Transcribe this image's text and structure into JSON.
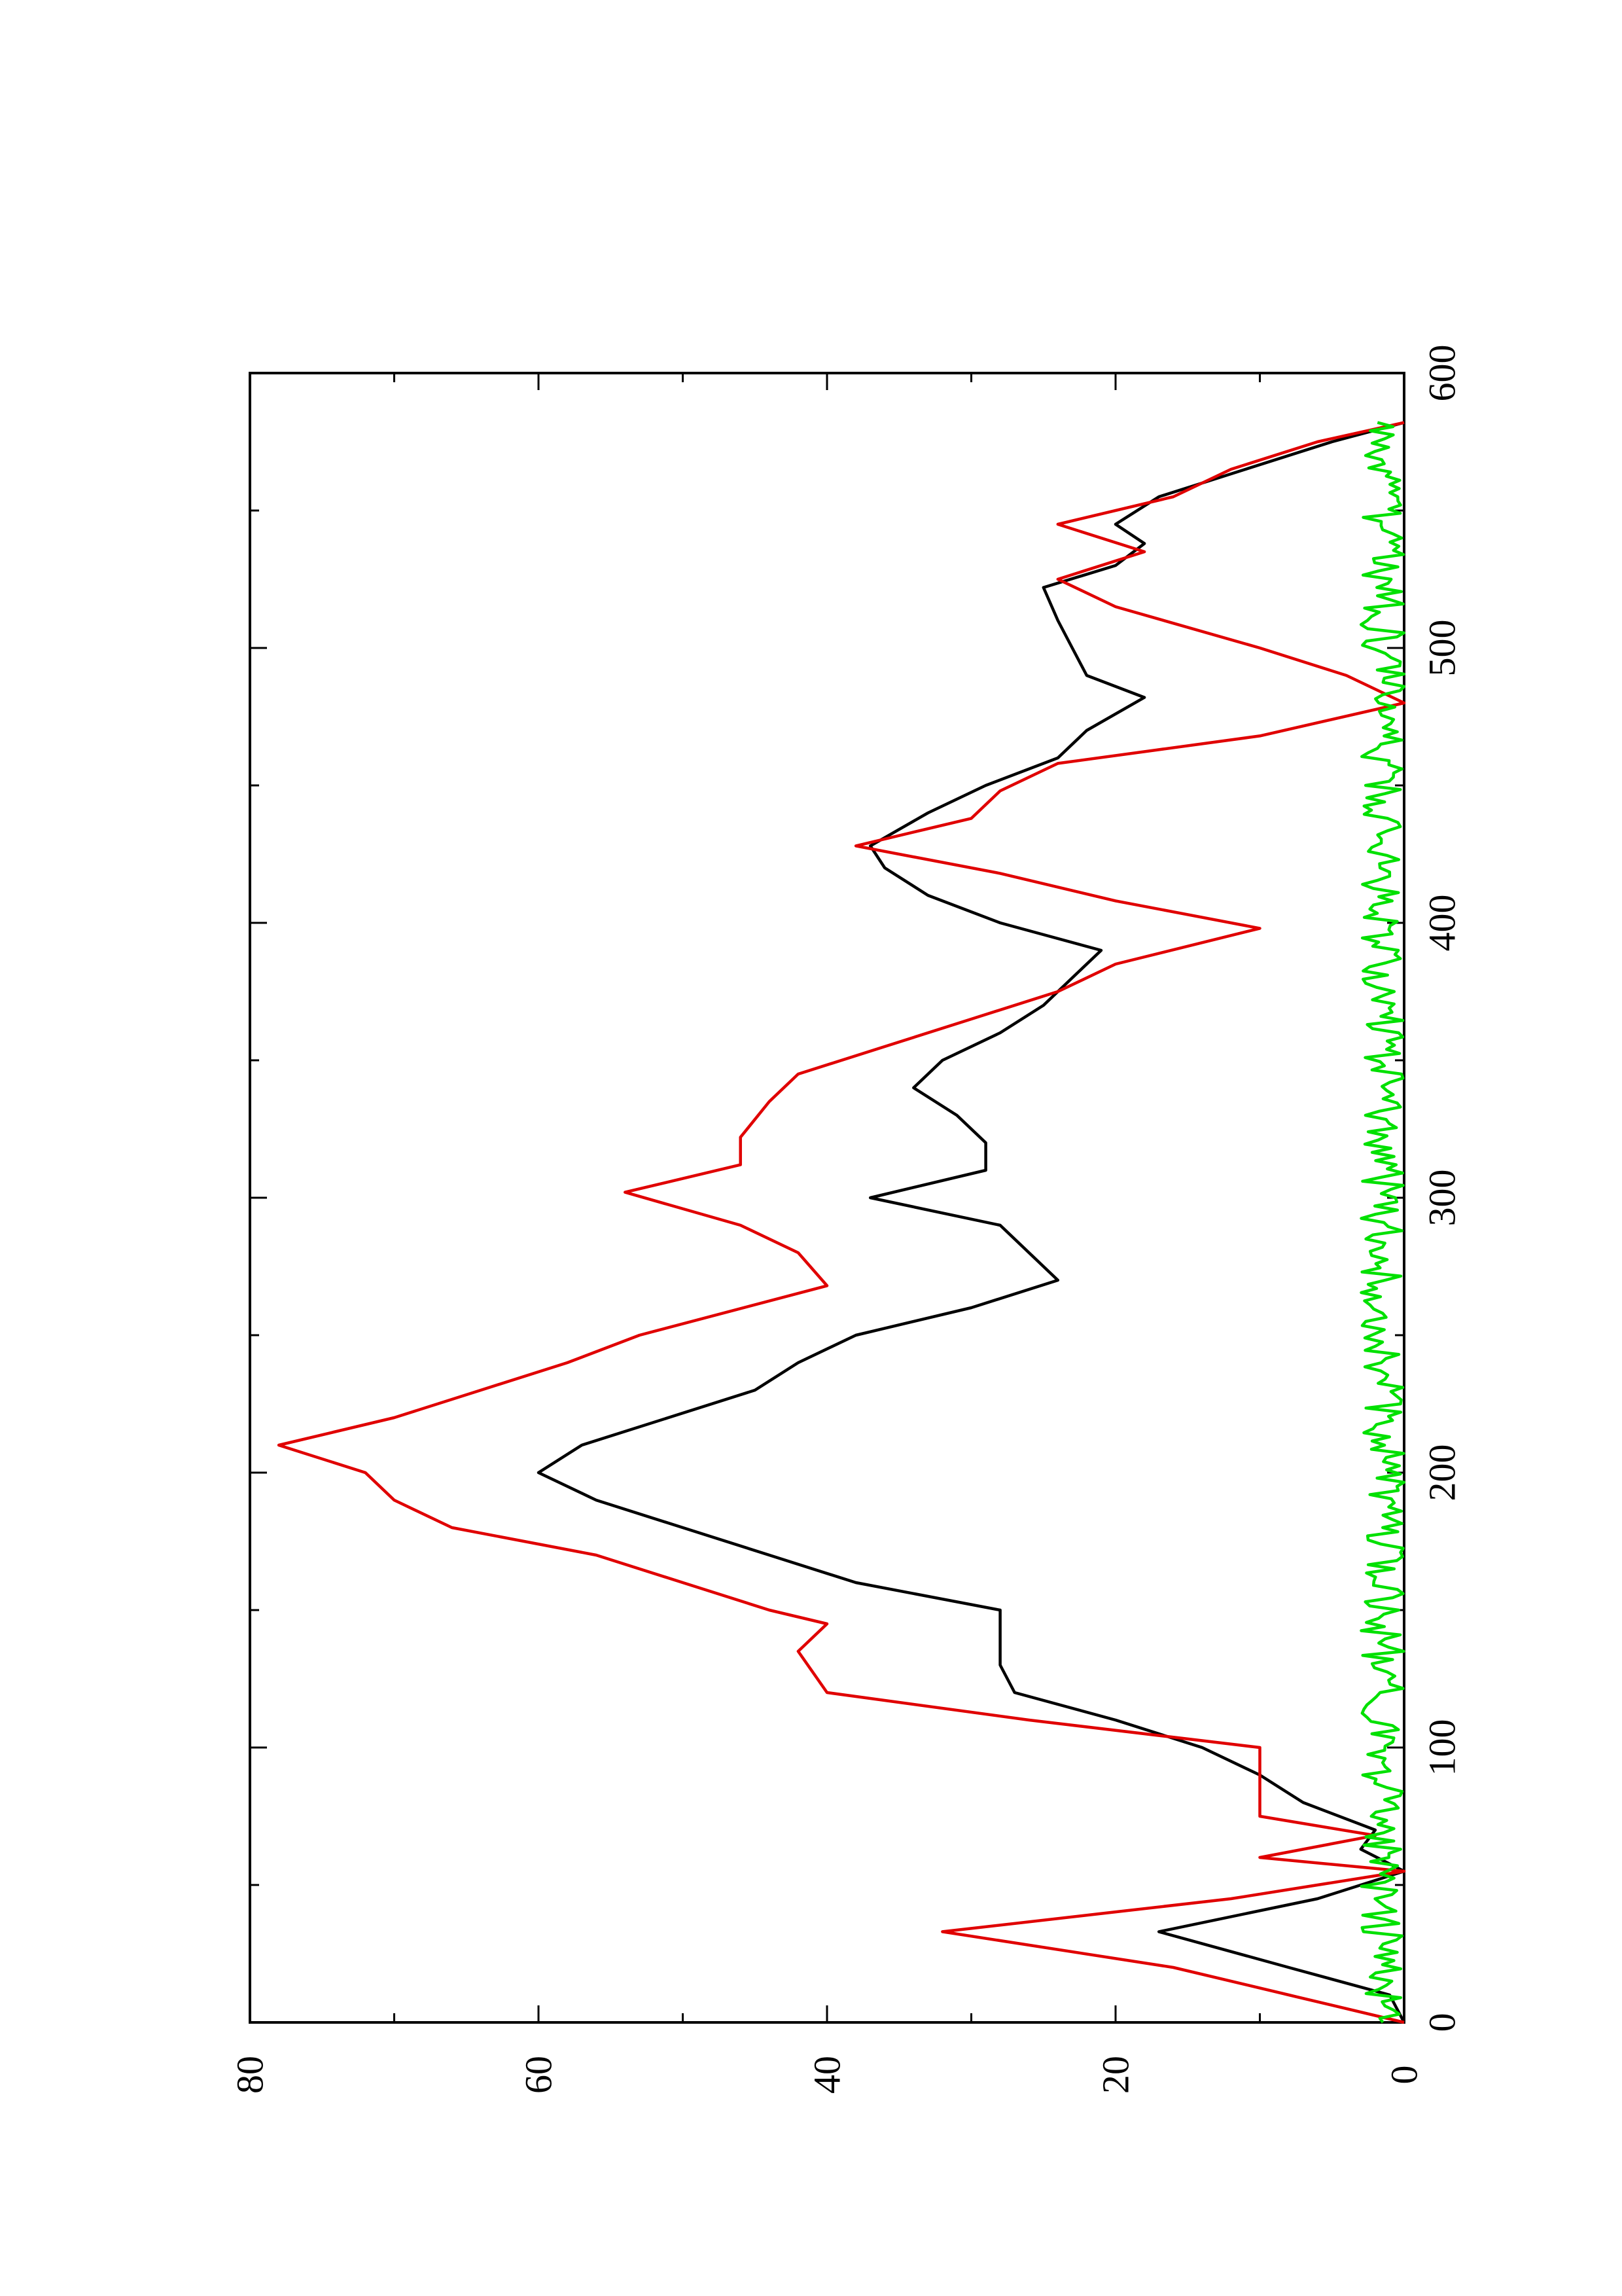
{
  "chart_data": {
    "type": "line",
    "orientation": "rotated-90-ccw",
    "title": "",
    "xlabel": "",
    "ylabel": "",
    "xlim": [
      0,
      600
    ],
    "ylim": [
      0,
      80
    ],
    "x_ticks": [
      0,
      100,
      200,
      300,
      400,
      500,
      600
    ],
    "x_tick_labels": [
      "0",
      "100",
      "200",
      "300",
      "400",
      "500",
      "600"
    ],
    "x_minor_ticks": [
      50,
      150,
      250,
      350,
      450,
      550
    ],
    "y_ticks": [
      0,
      20,
      40,
      60,
      80
    ],
    "y_tick_labels": [
      "0",
      "20",
      "40",
      "60",
      "80"
    ],
    "y_minor_ticks": [
      10,
      30,
      50,
      70
    ],
    "grid": false,
    "legend": "none",
    "series": [
      {
        "color": "#000000",
        "x": [
          0,
          10,
          20,
          33,
          45,
          55,
          63,
          70,
          80,
          90,
          100,
          110,
          120,
          130,
          140,
          150,
          160,
          170,
          180,
          190,
          200,
          210,
          220,
          230,
          240,
          250,
          260,
          270,
          280,
          290,
          300,
          310,
          320,
          330,
          340,
          350,
          360,
          370,
          380,
          390,
          400,
          410,
          420,
          428,
          440,
          450,
          460,
          470,
          482,
          490,
          500,
          510,
          522,
          530,
          538,
          545,
          555,
          565,
          575,
          582
        ],
        "y": [
          0,
          1,
          8,
          17,
          6,
          0,
          3,
          2,
          7,
          10,
          14,
          20,
          27,
          28,
          28,
          28,
          38,
          44,
          50,
          56,
          60,
          57,
          51,
          45,
          42,
          38,
          30,
          24,
          26,
          28,
          37,
          29,
          29,
          31,
          34,
          32,
          28,
          25,
          23,
          21,
          28,
          33,
          36,
          37,
          33,
          29,
          24,
          22,
          18,
          22,
          23,
          24,
          25,
          20,
          18,
          20,
          17,
          11,
          5,
          0
        ]
      },
      {
        "color": "#e00000",
        "x": [
          0,
          10,
          20,
          33,
          45,
          55,
          60,
          68,
          75,
          80,
          100,
          110,
          120,
          135,
          145,
          150,
          160,
          170,
          180,
          190,
          200,
          210,
          220,
          230,
          240,
          250,
          268,
          280,
          290,
          302,
          312,
          322,
          335,
          345,
          355,
          365,
          375,
          385,
          398,
          408,
          418,
          428,
          438,
          448,
          458,
          468,
          480,
          490,
          500,
          515,
          525,
          535,
          545,
          555,
          565,
          575,
          582
        ],
        "y": [
          0,
          8,
          16,
          32,
          12,
          0,
          10,
          2,
          10,
          10,
          10,
          26,
          40,
          42,
          40,
          44,
          50,
          56,
          66,
          70,
          72,
          78,
          70,
          64,
          58,
          53,
          40,
          42,
          46,
          54,
          46,
          46,
          44,
          42,
          36,
          30,
          24,
          20,
          10,
          20,
          28,
          38,
          30,
          28,
          24,
          10,
          0,
          4,
          10,
          20,
          24,
          18,
          24,
          16,
          12,
          6,
          0
        ]
      },
      {
        "color": "#00e000",
        "description": "noisy series fluctuating between 0 and about 3 across x = 0 to 582",
        "x_range": [
          0,
          582
        ],
        "y_range": [
          0,
          3
        ]
      }
    ]
  }
}
